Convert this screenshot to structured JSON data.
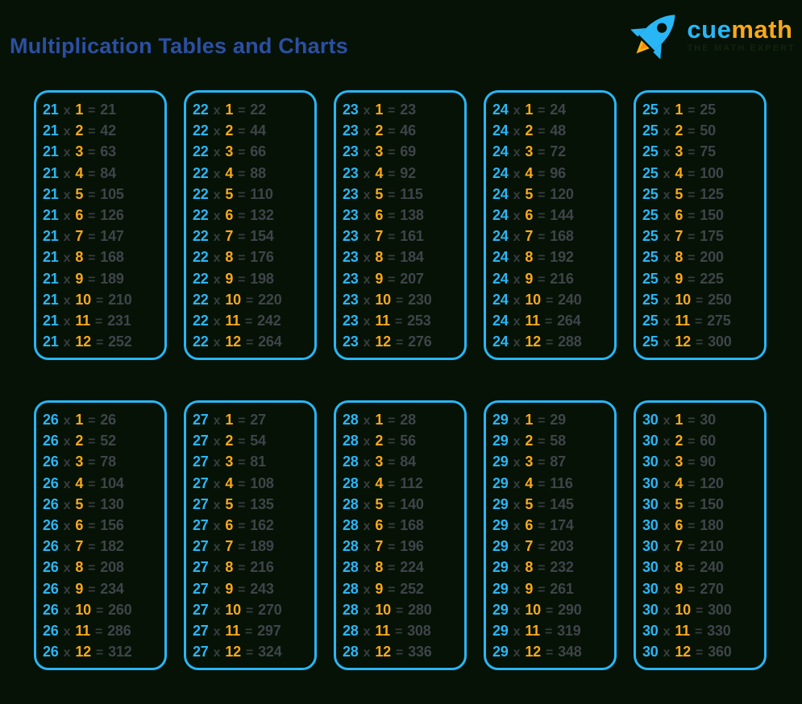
{
  "header": {
    "title": "Multiplication Tables and Charts"
  },
  "logo": {
    "brand_part1": "cue",
    "brand_part2": "math",
    "tagline": "THE MATH EXPERT"
  },
  "colors": {
    "background": "#051205",
    "accent_cyan": "#29b6f6",
    "accent_orange": "#f9a81b",
    "operator_gray": "#383d40",
    "product_gray": "#3f444a",
    "title_blue": "#2c4fa2"
  },
  "operator": "x",
  "equals": "=",
  "multipliers": [
    1,
    2,
    3,
    4,
    5,
    6,
    7,
    8,
    9,
    10,
    11,
    12
  ],
  "tables": [
    {
      "number": 21,
      "products": [
        21,
        42,
        63,
        84,
        105,
        126,
        147,
        168,
        189,
        210,
        231,
        252
      ]
    },
    {
      "number": 22,
      "products": [
        22,
        44,
        66,
        88,
        110,
        132,
        154,
        176,
        198,
        220,
        242,
        264
      ]
    },
    {
      "number": 23,
      "products": [
        23,
        46,
        69,
        92,
        115,
        138,
        161,
        184,
        207,
        230,
        253,
        276
      ]
    },
    {
      "number": 24,
      "products": [
        24,
        48,
        72,
        96,
        120,
        144,
        168,
        192,
        216,
        240,
        264,
        288
      ]
    },
    {
      "number": 25,
      "products": [
        25,
        50,
        75,
        100,
        125,
        150,
        175,
        200,
        225,
        250,
        275,
        300
      ]
    },
    {
      "number": 26,
      "products": [
        26,
        52,
        78,
        104,
        130,
        156,
        182,
        208,
        234,
        260,
        286,
        312
      ]
    },
    {
      "number": 27,
      "products": [
        27,
        54,
        81,
        108,
        135,
        162,
        189,
        216,
        243,
        270,
        297,
        324
      ]
    },
    {
      "number": 28,
      "products": [
        28,
        56,
        84,
        112,
        140,
        168,
        196,
        224,
        252,
        280,
        308,
        336
      ]
    },
    {
      "number": 29,
      "products": [
        29,
        58,
        87,
        116,
        145,
        174,
        203,
        232,
        261,
        290,
        319,
        348
      ]
    },
    {
      "number": 30,
      "products": [
        30,
        60,
        90,
        120,
        150,
        180,
        210,
        240,
        270,
        300,
        330,
        360
      ]
    }
  ]
}
